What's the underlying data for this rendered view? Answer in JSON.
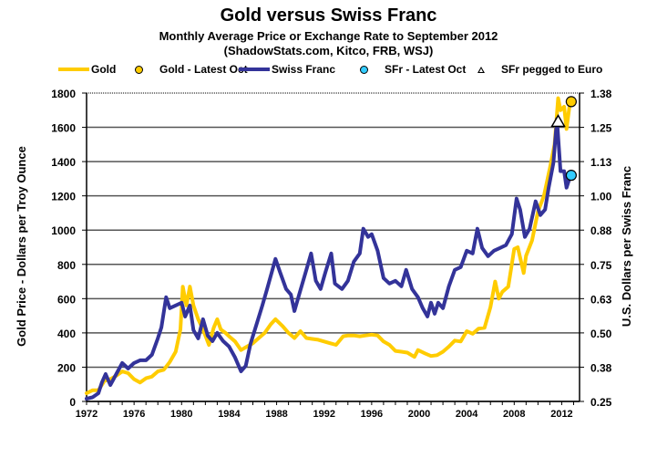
{
  "chart_data": {
    "type": "line",
    "title": "Gold versus Swiss Franc",
    "subtitle": "Monthly Average Price or Exchange Rate to September 2012",
    "source": "(ShadowStats.com, Kitco, FRB, WSJ)",
    "xlabel": "",
    "ylabel": "Gold Price - Dollars per Troy Ounce",
    "y2label": "U.S. Dollars per Swiss Franc",
    "xlim": [
      1972,
      2013.5
    ],
    "ylim": [
      0,
      1800
    ],
    "y2lim": [
      0.25,
      1.375
    ],
    "x_ticks": [
      "1972",
      "1976",
      "1980",
      "1984",
      "1988",
      "1992",
      "1996",
      "2000",
      "2004",
      "2008",
      "2012"
    ],
    "y_ticks": [
      "0",
      "200",
      "400",
      "600",
      "800",
      "1000",
      "1200",
      "1400",
      "1600",
      "1800"
    ],
    "y2_ticks": [
      "0.25",
      "0.38",
      "0.50",
      "0.63",
      "0.75",
      "0.88",
      "1.00",
      "1.13",
      "1.25",
      "1.38"
    ],
    "grid": true,
    "legend_position": "top",
    "colors": {
      "gold": "#FFCC00",
      "franc": "#333399",
      "sfr_marker": "#33CCFF",
      "gold_marker": "#FFCC00"
    },
    "legend": [
      {
        "label": "Gold",
        "kind": "line",
        "color": "#FFCC00"
      },
      {
        "label": "Gold - Latest Oct",
        "kind": "dot",
        "color": "#FFCC00"
      },
      {
        "label": "Swiss Franc",
        "kind": "line",
        "color": "#333399"
      },
      {
        "label": "SFr - Latest Oct",
        "kind": "dot",
        "color": "#33CCFF"
      },
      {
        "label": "SFr pegged to Euro",
        "kind": "triangle",
        "color": "#FFFFFF"
      }
    ],
    "series": [
      {
        "name": "Gold",
        "axis": "left",
        "points": [
          [
            1972.0,
            48
          ],
          [
            1972.5,
            65
          ],
          [
            1973.0,
            65
          ],
          [
            1973.5,
            120
          ],
          [
            1974.0,
            130
          ],
          [
            1974.5,
            150
          ],
          [
            1975.0,
            175
          ],
          [
            1975.5,
            165
          ],
          [
            1976.0,
            130
          ],
          [
            1976.5,
            110
          ],
          [
            1977.0,
            135
          ],
          [
            1977.5,
            145
          ],
          [
            1978.0,
            175
          ],
          [
            1978.5,
            185
          ],
          [
            1979.0,
            230
          ],
          [
            1979.5,
            290
          ],
          [
            1979.9,
            420
          ],
          [
            1980.1,
            670
          ],
          [
            1980.4,
            560
          ],
          [
            1980.7,
            670
          ],
          [
            1981.0,
            560
          ],
          [
            1981.4,
            480
          ],
          [
            1981.8,
            420
          ],
          [
            1982.3,
            330
          ],
          [
            1982.7,
            430
          ],
          [
            1983.0,
            480
          ],
          [
            1983.3,
            420
          ],
          [
            1983.7,
            400
          ],
          [
            1984.0,
            380
          ],
          [
            1984.5,
            350
          ],
          [
            1985.0,
            300
          ],
          [
            1985.5,
            320
          ],
          [
            1986.0,
            340
          ],
          [
            1986.5,
            370
          ],
          [
            1987.0,
            400
          ],
          [
            1987.5,
            450
          ],
          [
            1987.9,
            480
          ],
          [
            1988.5,
            440
          ],
          [
            1989.0,
            400
          ],
          [
            1989.5,
            370
          ],
          [
            1990.0,
            410
          ],
          [
            1990.5,
            370
          ],
          [
            1991.0,
            365
          ],
          [
            1991.5,
            360
          ],
          [
            1992.0,
            350
          ],
          [
            1992.5,
            340
          ],
          [
            1993.0,
            330
          ],
          [
            1993.6,
            380
          ],
          [
            1994.0,
            385
          ],
          [
            1994.5,
            385
          ],
          [
            1995.0,
            380
          ],
          [
            1995.5,
            385
          ],
          [
            1996.0,
            390
          ],
          [
            1996.5,
            385
          ],
          [
            1997.0,
            350
          ],
          [
            1997.5,
            330
          ],
          [
            1998.0,
            295
          ],
          [
            1998.5,
            290
          ],
          [
            1999.0,
            285
          ],
          [
            1999.6,
            260
          ],
          [
            1999.9,
            300
          ],
          [
            2000.5,
            280
          ],
          [
            2001.0,
            265
          ],
          [
            2001.5,
            270
          ],
          [
            2002.0,
            290
          ],
          [
            2002.5,
            320
          ],
          [
            2003.0,
            355
          ],
          [
            2003.5,
            350
          ],
          [
            2004.0,
            410
          ],
          [
            2004.5,
            395
          ],
          [
            2005.0,
            425
          ],
          [
            2005.5,
            430
          ],
          [
            2006.0,
            550
          ],
          [
            2006.4,
            700
          ],
          [
            2006.7,
            600
          ],
          [
            2007.0,
            640
          ],
          [
            2007.5,
            670
          ],
          [
            2008.0,
            890
          ],
          [
            2008.3,
            900
          ],
          [
            2008.8,
            750
          ],
          [
            2009.0,
            850
          ],
          [
            2009.5,
            940
          ],
          [
            2010.0,
            1110
          ],
          [
            2010.5,
            1200
          ],
          [
            2011.0,
            1360
          ],
          [
            2011.4,
            1500
          ],
          [
            2011.7,
            1770
          ],
          [
            2011.9,
            1700
          ],
          [
            2012.2,
            1720
          ],
          [
            2012.4,
            1590
          ],
          [
            2012.7,
            1750
          ]
        ]
      },
      {
        "name": "Swiss Franc",
        "axis": "right",
        "points": [
          [
            1972.0,
            0.26
          ],
          [
            1972.5,
            0.265
          ],
          [
            1973.0,
            0.28
          ],
          [
            1973.3,
            0.32
          ],
          [
            1973.6,
            0.35
          ],
          [
            1974.0,
            0.31
          ],
          [
            1974.5,
            0.35
          ],
          [
            1975.0,
            0.39
          ],
          [
            1975.5,
            0.37
          ],
          [
            1976.0,
            0.39
          ],
          [
            1976.5,
            0.4
          ],
          [
            1977.0,
            0.4
          ],
          [
            1977.5,
            0.42
          ],
          [
            1978.0,
            0.48
          ],
          [
            1978.3,
            0.52
          ],
          [
            1978.7,
            0.63
          ],
          [
            1979.0,
            0.59
          ],
          [
            1979.5,
            0.6
          ],
          [
            1980.0,
            0.61
          ],
          [
            1980.3,
            0.56
          ],
          [
            1980.7,
            0.6
          ],
          [
            1981.0,
            0.51
          ],
          [
            1981.4,
            0.48
          ],
          [
            1981.8,
            0.55
          ],
          [
            1982.2,
            0.49
          ],
          [
            1982.6,
            0.47
          ],
          [
            1983.0,
            0.5
          ],
          [
            1983.5,
            0.47
          ],
          [
            1984.0,
            0.45
          ],
          [
            1984.5,
            0.41
          ],
          [
            1985.0,
            0.36
          ],
          [
            1985.4,
            0.38
          ],
          [
            1985.8,
            0.46
          ],
          [
            1986.3,
            0.53
          ],
          [
            1986.8,
            0.6
          ],
          [
            1987.2,
            0.66
          ],
          [
            1987.9,
            0.77
          ],
          [
            1988.3,
            0.72
          ],
          [
            1988.8,
            0.66
          ],
          [
            1989.2,
            0.64
          ],
          [
            1989.5,
            0.58
          ],
          [
            1989.9,
            0.64
          ],
          [
            1990.5,
            0.73
          ],
          [
            1990.9,
            0.79
          ],
          [
            1991.3,
            0.69
          ],
          [
            1991.7,
            0.66
          ],
          [
            1992.1,
            0.72
          ],
          [
            1992.6,
            0.79
          ],
          [
            1992.9,
            0.68
          ],
          [
            1993.5,
            0.66
          ],
          [
            1994.0,
            0.69
          ],
          [
            1994.5,
            0.76
          ],
          [
            1995.0,
            0.79
          ],
          [
            1995.3,
            0.88
          ],
          [
            1995.7,
            0.85
          ],
          [
            1996.0,
            0.86
          ],
          [
            1996.5,
            0.8
          ],
          [
            1997.0,
            0.7
          ],
          [
            1997.5,
            0.68
          ],
          [
            1998.0,
            0.69
          ],
          [
            1998.5,
            0.67
          ],
          [
            1998.9,
            0.73
          ],
          [
            1999.4,
            0.66
          ],
          [
            1999.9,
            0.63
          ],
          [
            2000.3,
            0.59
          ],
          [
            2000.7,
            0.56
          ],
          [
            2001.0,
            0.61
          ],
          [
            2001.3,
            0.57
          ],
          [
            2001.6,
            0.61
          ],
          [
            2002.0,
            0.59
          ],
          [
            2002.5,
            0.67
          ],
          [
            2003.0,
            0.73
          ],
          [
            2003.5,
            0.74
          ],
          [
            2004.0,
            0.8
          ],
          [
            2004.5,
            0.79
          ],
          [
            2004.9,
            0.88
          ],
          [
            2005.3,
            0.81
          ],
          [
            2005.8,
            0.78
          ],
          [
            2006.3,
            0.8
          ],
          [
            2006.8,
            0.81
          ],
          [
            2007.3,
            0.82
          ],
          [
            2007.8,
            0.86
          ],
          [
            2008.2,
            0.99
          ],
          [
            2008.5,
            0.95
          ],
          [
            2008.9,
            0.85
          ],
          [
            2009.3,
            0.88
          ],
          [
            2009.8,
            0.98
          ],
          [
            2010.2,
            0.93
          ],
          [
            2010.6,
            0.95
          ],
          [
            2010.9,
            1.03
          ],
          [
            2011.3,
            1.12
          ],
          [
            2011.6,
            1.28
          ],
          [
            2011.9,
            1.09
          ],
          [
            2012.2,
            1.09
          ],
          [
            2012.4,
            1.03
          ],
          [
            2012.7,
            1.07
          ]
        ]
      }
    ],
    "markers": [
      {
        "name": "Gold - Latest Oct",
        "x": 2012.8,
        "value": 1750,
        "axis": "left",
        "shape": "dot"
      },
      {
        "name": "SFr - Latest Oct",
        "x": 2012.8,
        "value": 1.075,
        "axis": "right",
        "shape": "dot"
      },
      {
        "name": "SFr pegged to Euro",
        "x": 2011.7,
        "value": 1.27,
        "axis": "right",
        "shape": "triangle"
      }
    ]
  }
}
